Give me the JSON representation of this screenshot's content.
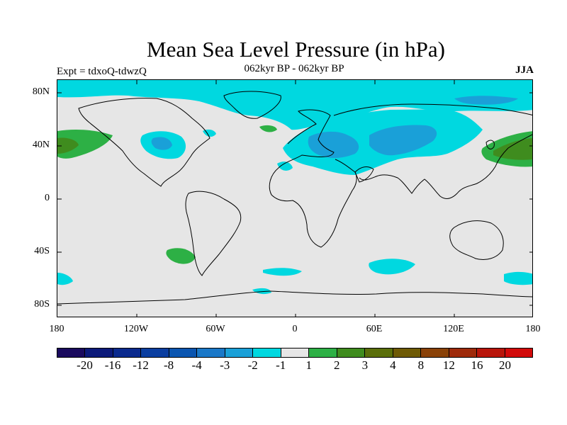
{
  "title": "Mean Sea Level Pressure (in hPa)",
  "subtitle": "062kyr BP - 062kyr BP",
  "expt": "Expt = tdxoQ-tdwzQ",
  "season": "JJA",
  "lat_labels": [
    "80N",
    "40N",
    "0",
    "40S",
    "80S"
  ],
  "lon_labels": [
    "180",
    "120W",
    "60W",
    "0",
    "60E",
    "120E",
    "180"
  ],
  "colorbar": {
    "colors": [
      "#1a0a5e",
      "#0c1a7a",
      "#0a2a8e",
      "#0a3ea0",
      "#0a55b0",
      "#1a78c8",
      "#1aa0d8",
      "#00d8e0",
      "#e6e6e6",
      "#2db045",
      "#3f8c1e",
      "#5a6e0a",
      "#6e5a05",
      "#8a4208",
      "#9e2a0a",
      "#b8150a",
      "#d20a0a"
    ],
    "labels": [
      "-20",
      "-16",
      "-12",
      "-8",
      "-4",
      "-3",
      "-2",
      "-1",
      "1",
      "2",
      "3",
      "4",
      "8",
      "12",
      "16",
      "20"
    ]
  }
}
